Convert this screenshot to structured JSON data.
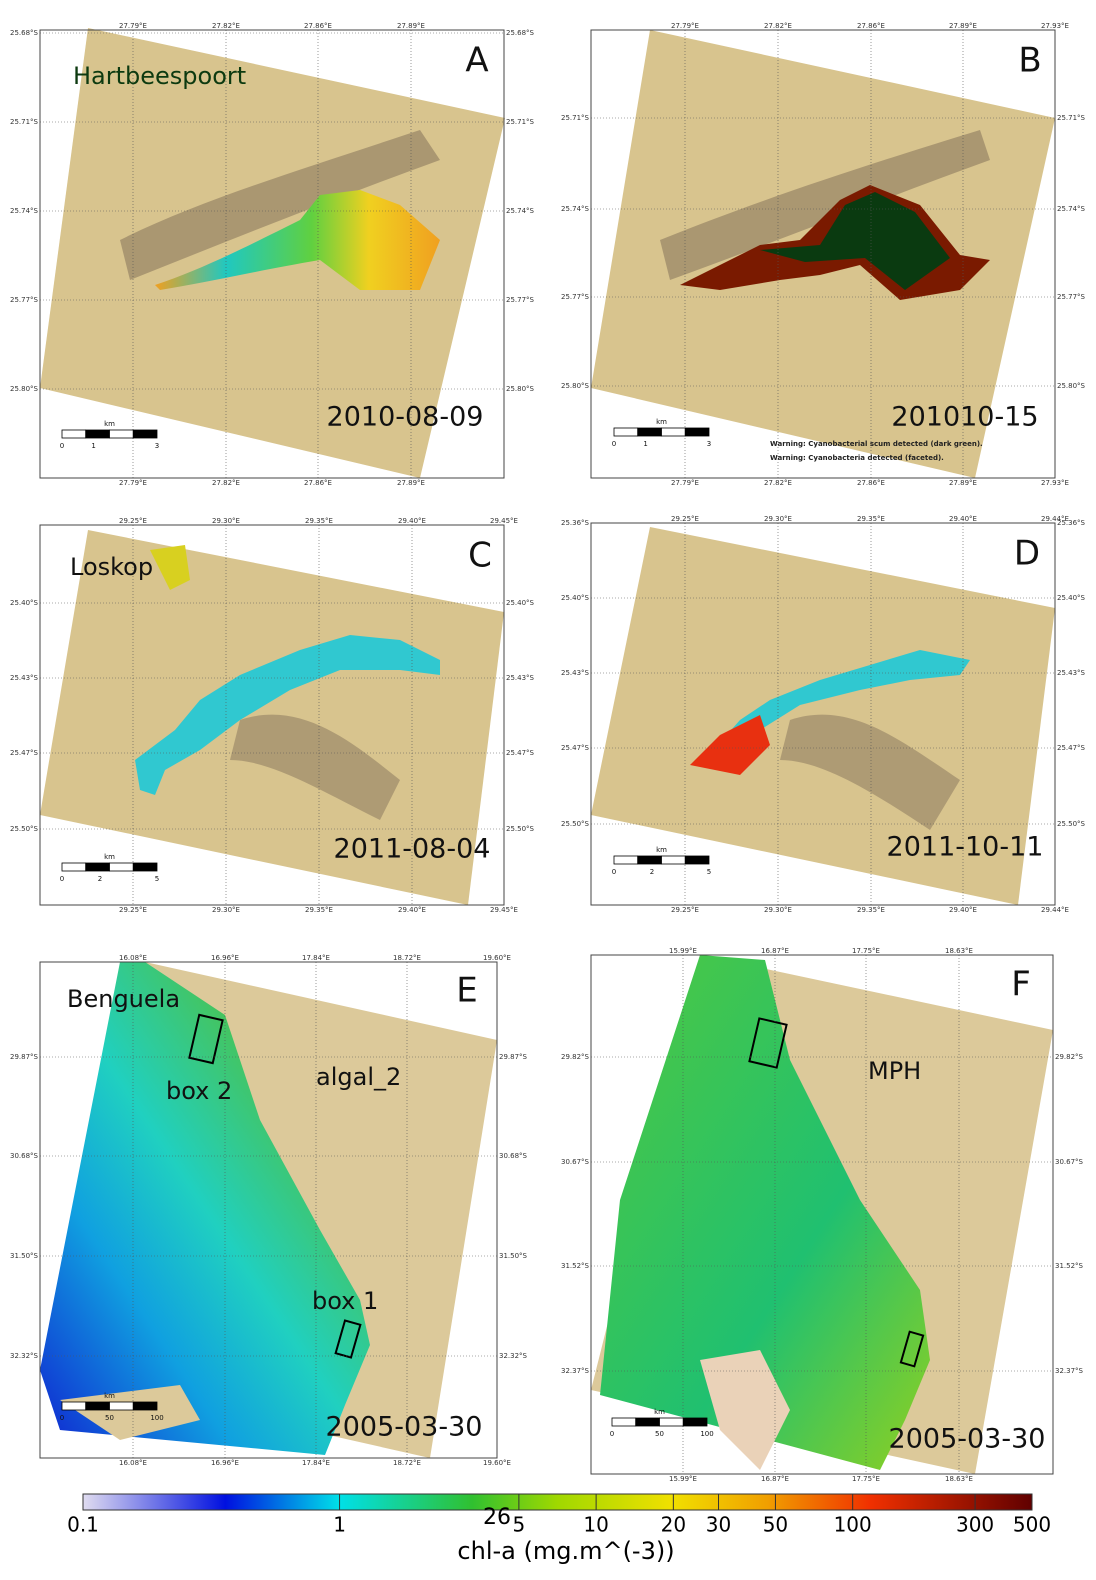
{
  "panels": [
    {
      "letter": "A",
      "site": "Hartbeespoort",
      "date": "2010-08-09",
      "lat_labels": [
        "25.68°S",
        "25.71°S",
        "25.74°S",
        "25.77°S",
        "25.80°S"
      ],
      "lon_labels": [
        "27.79°E",
        "27.82°E",
        "27.86°E",
        "27.89°E"
      ],
      "scale": {
        "unit": "km",
        "ticks": [
          0,
          1,
          3
        ]
      }
    },
    {
      "letter": "B",
      "date": "201010-15",
      "lat_labels": [
        "25.71°S",
        "25.74°S",
        "25.77°S",
        "25.80°S"
      ],
      "lon_labels": [
        "27.79°E",
        "27.82°E",
        "27.86°E",
        "27.89°E",
        "27.93°E"
      ],
      "scale": {
        "unit": "km",
        "ticks": [
          0,
          1,
          3
        ]
      },
      "warnings": [
        "Warning: Cyanobacterial scum detected (dark green).",
        "Warning: Cyanobacteria detected (faceted)."
      ]
    },
    {
      "letter": "C",
      "site": "Loskop",
      "date": "2011-08-04",
      "lat_labels": [
        "25.40°S",
        "25.43°S",
        "25.47°S",
        "25.50°S"
      ],
      "lon_labels": [
        "29.25°E",
        "29.30°E",
        "29.35°E",
        "29.40°E",
        "29.45°E"
      ],
      "scale": {
        "unit": "km",
        "ticks": [
          0,
          2,
          5
        ]
      }
    },
    {
      "letter": "D",
      "date": "2011-10-11",
      "lat_labels": [
        "25.36°S",
        "25.40°S",
        "25.43°S",
        "25.47°S",
        "25.50°S"
      ],
      "lon_labels": [
        "29.25°E",
        "29.30°E",
        "29.35°E",
        "29.40°E",
        "29.44°E"
      ],
      "scale": {
        "unit": "km",
        "ticks": [
          0,
          2,
          5
        ]
      }
    },
    {
      "letter": "E",
      "site": "Benguela",
      "algorithm": "algal_2",
      "boxes": [
        "box 2",
        "box 1"
      ],
      "date": "2005-03-30",
      "lat_labels": [
        "29.87°S",
        "30.68°S",
        "31.50°S",
        "32.32°S"
      ],
      "lon_labels": [
        "16.08°E",
        "16.96°E",
        "17.84°E",
        "18.72°E",
        "19.60°E"
      ],
      "scale": {
        "unit": "km",
        "ticks": [
          0,
          50,
          100
        ]
      }
    },
    {
      "letter": "F",
      "algorithm": "MPH",
      "date": "2005-03-30",
      "lat_labels": [
        "29.82°S",
        "30.67°S",
        "31.52°S",
        "32.37°S"
      ],
      "lon_labels": [
        "15.99°E",
        "16.87°E",
        "17.75°E",
        "18.63°E"
      ],
      "scale": {
        "unit": "km",
        "ticks": [
          0,
          50,
          100
        ]
      }
    }
  ],
  "colorbar": {
    "lim": [
      0.1,
      500
    ],
    "log": true,
    "ticks": [
      0.1,
      1,
      5,
      10,
      20,
      30,
      50,
      100,
      300,
      500
    ],
    "label": "chl-a (mg.m^(-3))",
    "overlay_text": "26"
  }
}
